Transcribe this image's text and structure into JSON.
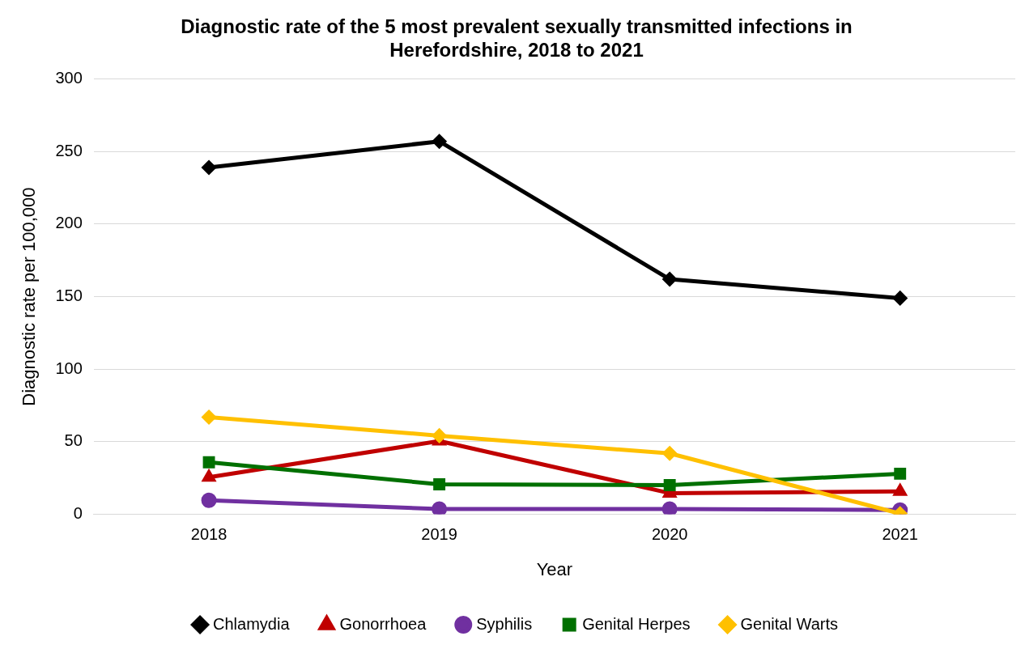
{
  "chart_data": {
    "type": "line",
    "title": "Diagnostic rate of the 5 most prevalent sexually transmitted infections in Herefordshire, 2018 to 2021",
    "xlabel": "Year",
    "ylabel": "Diagnostic rate per 100,000",
    "categories": [
      "2018",
      "2019",
      "2020",
      "2021"
    ],
    "series": [
      {
        "name": "Chlamydia",
        "color": "#000000",
        "marker": "diamond",
        "values": [
          239,
          257,
          162,
          149
        ]
      },
      {
        "name": "Gonorrhoea",
        "color": "#c00000",
        "marker": "triangle",
        "values": [
          25.6,
          50.5,
          14.6,
          15.8
        ]
      },
      {
        "name": "Syphilis",
        "color": "#7030a0",
        "marker": "circle",
        "values": [
          9.7,
          3.7,
          3.7,
          3
        ]
      },
      {
        "name": "Genital Herpes",
        "color": "#007000",
        "marker": "square",
        "values": [
          35.9,
          20.7,
          20.1,
          28
        ]
      },
      {
        "name": "Genital Warts",
        "color": "#ffc000",
        "marker": "diamond",
        "values": [
          67,
          54.2,
          42,
          0.5
        ]
      }
    ],
    "ylim": [
      0,
      300
    ],
    "yticks": [
      0,
      50,
      100,
      150,
      200,
      250,
      300
    ],
    "grid": "y",
    "legend": "bottom",
    "line_style": "solid"
  }
}
